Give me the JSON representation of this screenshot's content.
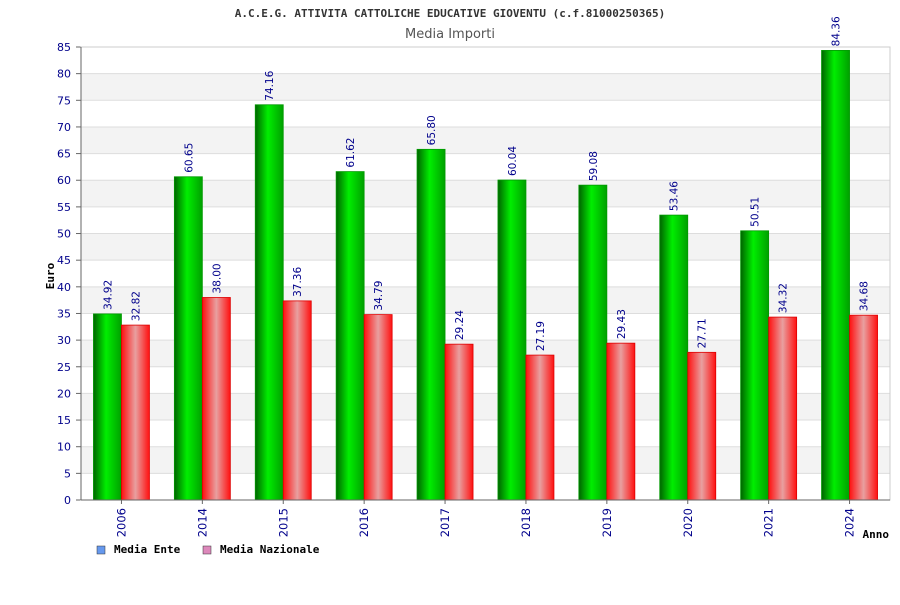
{
  "chart_data": {
    "type": "bar",
    "title": "A.C.E.G. ATTIVITA CATTOLICHE EDUCATIVE GIOVENTU (c.f.81000250365)",
    "subtitle": "Media Importi",
    "xlabel": "Anno",
    "ylabel": "Euro",
    "categories": [
      "2006",
      "2014",
      "2015",
      "2016",
      "2017",
      "2018",
      "2019",
      "2020",
      "2021",
      "2024"
    ],
    "series": [
      {
        "name": "Media Ente",
        "values": [
          34.92,
          60.65,
          74.16,
          61.62,
          65.8,
          60.04,
          59.08,
          53.46,
          50.51,
          84.36
        ],
        "labels": [
          "34.92",
          "60.65",
          "74.16",
          "61.62",
          "65.80",
          "60.04",
          "59.08",
          "53.46",
          "50.51",
          "84.36"
        ],
        "color": "#00aa00"
      },
      {
        "name": "Media Nazionale",
        "values": [
          32.82,
          38.0,
          37.36,
          34.79,
          29.24,
          27.19,
          29.43,
          27.71,
          34.32,
          34.68
        ],
        "labels": [
          "32.82",
          "38.00",
          "37.36",
          "34.79",
          "29.24",
          "27.19",
          "29.43",
          "27.71",
          "34.32",
          "34.68"
        ],
        "color": "#ee1111"
      }
    ],
    "ylim": [
      0,
      85
    ],
    "yticks": [
      "0",
      "5",
      "10",
      "15",
      "20",
      "25",
      "30",
      "35",
      "40",
      "45",
      "50",
      "55",
      "60",
      "65",
      "70",
      "75",
      "80",
      "85"
    ],
    "grid": true,
    "legend_position": "bottom-left",
    "legend_swatch_colors": [
      "#6699ee",
      "#dd88bb"
    ],
    "colors": {
      "axis_text": "#00008b",
      "band": "#f3f3f3",
      "grid": "#dddddd"
    }
  }
}
